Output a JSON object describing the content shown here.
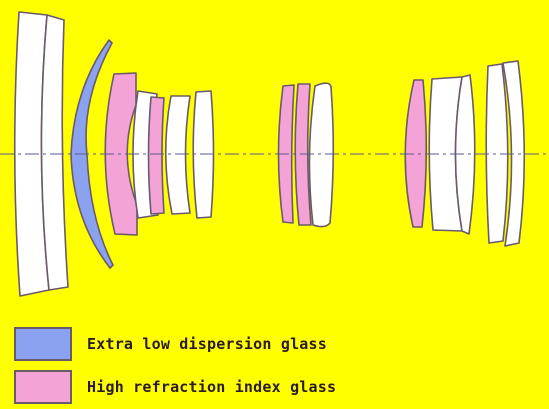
{
  "colors": {
    "background": "#ffff00",
    "plain_glass": "#ffffff",
    "ed_glass": "#8aa2f0",
    "high_index_glass": "#f3a3d6",
    "outline": "#6a5a6a",
    "axis": "#5a5a8a"
  },
  "legend": [
    {
      "label": "Extra low dispersion glass",
      "color_key": "ed_glass"
    },
    {
      "label": "High refraction index glass",
      "color_key": "high_index_glass"
    }
  ],
  "lens_elements": [
    {
      "name": "lens-element-1",
      "glass": "plain_glass"
    },
    {
      "name": "lens-element-2",
      "glass": "plain_glass"
    },
    {
      "name": "lens-element-3",
      "glass": "ed_glass"
    },
    {
      "name": "lens-element-4",
      "glass": "high_index_glass"
    },
    {
      "name": "lens-element-5",
      "glass": "plain_glass"
    },
    {
      "name": "lens-element-6",
      "glass": "high_index_glass"
    },
    {
      "name": "lens-element-7",
      "glass": "plain_glass"
    },
    {
      "name": "lens-element-8",
      "glass": "plain_glass"
    },
    {
      "name": "lens-element-9",
      "glass": "high_index_glass"
    },
    {
      "name": "lens-element-10",
      "glass": "high_index_glass"
    },
    {
      "name": "lens-element-11",
      "glass": "plain_glass"
    },
    {
      "name": "lens-element-12",
      "glass": "high_index_glass"
    },
    {
      "name": "lens-element-13",
      "glass": "plain_glass"
    },
    {
      "name": "lens-element-14",
      "glass": "plain_glass"
    },
    {
      "name": "lens-element-15",
      "glass": "plain_glass"
    },
    {
      "name": "lens-element-16",
      "glass": "plain_glass"
    }
  ]
}
